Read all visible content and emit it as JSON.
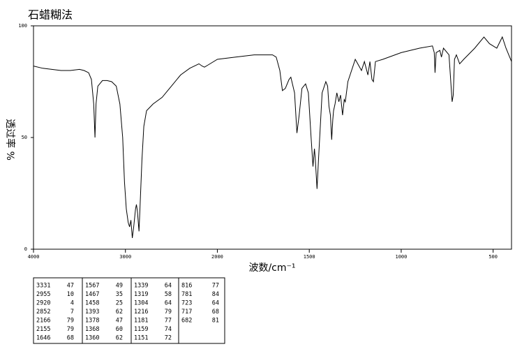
{
  "chart_data": {
    "type": "line",
    "title": "石蜡糊法",
    "x_label": "波数/cm⁻¹",
    "y_label": "透过率 %",
    "xlim": [
      4000,
      400
    ],
    "xscale_break": 2000,
    "xticks": [
      4000,
      3000,
      2000,
      1500,
      1000,
      500
    ],
    "ylim": [
      0,
      100
    ],
    "yticks": [
      0,
      50,
      100
    ],
    "color": "#000000",
    "x": [
      4000,
      3900,
      3800,
      3700,
      3600,
      3500,
      3450,
      3400,
      3370,
      3345,
      3331,
      3320,
      3300,
      3250,
      3200,
      3150,
      3100,
      3060,
      3030,
      3010,
      2990,
      2970,
      2955,
      2940,
      2925,
      2910,
      2890,
      2880,
      2870,
      2852,
      2840,
      2820,
      2800,
      2770,
      2700,
      2600,
      2500,
      2400,
      2300,
      2200,
      2166,
      2140,
      2100,
      2000,
      1900,
      1800,
      1700,
      1680,
      1660,
      1646,
      1630,
      1610,
      1600,
      1580,
      1567,
      1555,
      1540,
      1520,
      1505,
      1490,
      1480,
      1472,
      1467,
      1458,
      1450,
      1430,
      1410,
      1400,
      1393,
      1385,
      1378,
      1372,
      1368,
      1360,
      1350,
      1339,
      1330,
      1319,
      1310,
      1304,
      1290,
      1250,
      1216,
      1200,
      1181,
      1170,
      1159,
      1151,
      1140,
      1100,
      1000,
      900,
      830,
      820,
      816,
      810,
      790,
      781,
      770,
      740,
      723,
      717,
      710,
      700,
      682,
      660,
      600,
      550,
      520,
      480,
      450,
      430,
      400
    ],
    "values": [
      82,
      81,
      80.5,
      80,
      80,
      80.5,
      80,
      79,
      76,
      65,
      50,
      65,
      73,
      75.5,
      75.5,
      75,
      73,
      65,
      50,
      30,
      18,
      12,
      10,
      13,
      5,
      10,
      18,
      20,
      17,
      8,
      20,
      40,
      55,
      62,
      65,
      68,
      73,
      78,
      81,
      83,
      82,
      81.5,
      82.5,
      85,
      86,
      87,
      87,
      86,
      80,
      71,
      72,
      76,
      77,
      70,
      52,
      60,
      72,
      74,
      70,
      50,
      37,
      45,
      40,
      27,
      40,
      70,
      75,
      73,
      64,
      60,
      49,
      58,
      62,
      65,
      70,
      66,
      69,
      60,
      67,
      66,
      75,
      85,
      80,
      84,
      78,
      84,
      76,
      75,
      84,
      85,
      88,
      90,
      91,
      88,
      79,
      88,
      89,
      86,
      90,
      87,
      66,
      69,
      85,
      87,
      83,
      85,
      90,
      95,
      92,
      90,
      95,
      90,
      84
    ]
  },
  "peak_table": [
    [
      [
        3331,
        47
      ],
      [
        2955,
        10
      ],
      [
        2920,
        4
      ],
      [
        2852,
        7
      ],
      [
        2166,
        79
      ],
      [
        2155,
        79
      ],
      [
        1646,
        68
      ]
    ],
    [
      [
        1567,
        49
      ],
      [
        1467,
        35
      ],
      [
        1458,
        25
      ],
      [
        1393,
        62
      ],
      [
        1378,
        47
      ],
      [
        1368,
        60
      ],
      [
        1360,
        62
      ]
    ],
    [
      [
        1339,
        64
      ],
      [
        1319,
        58
      ],
      [
        1304,
        64
      ],
      [
        1216,
        79
      ],
      [
        1181,
        77
      ],
      [
        1159,
        74
      ],
      [
        1151,
        72
      ]
    ],
    [
      [
        816,
        77
      ],
      [
        781,
        84
      ],
      [
        723,
        64
      ],
      [
        717,
        68
      ],
      [
        682,
        81
      ]
    ]
  ]
}
